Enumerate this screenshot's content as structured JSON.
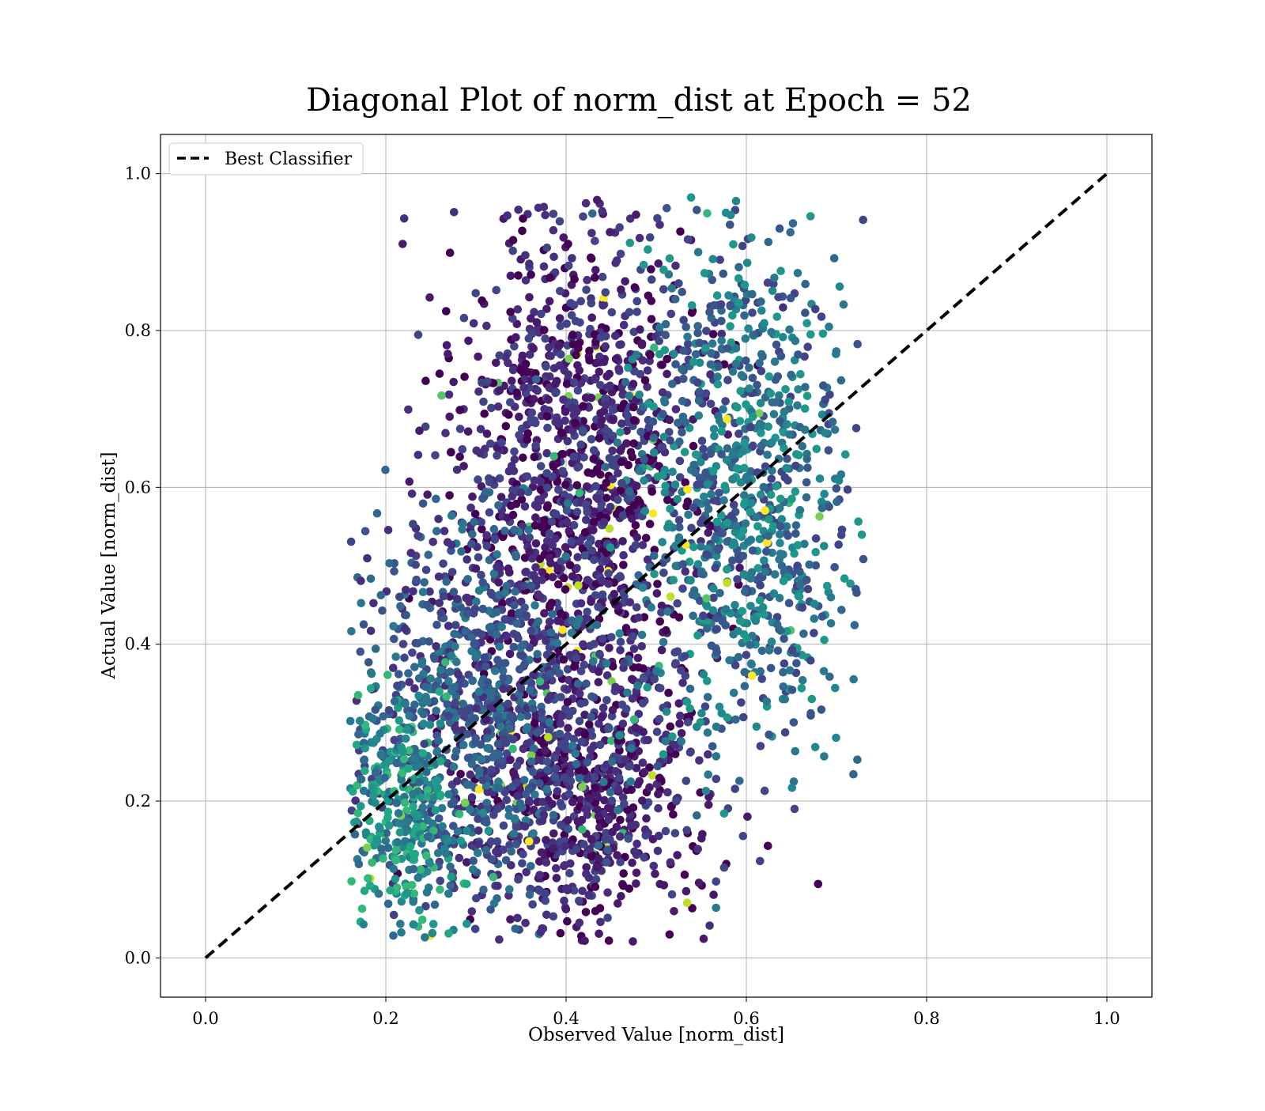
{
  "chart_data": {
    "type": "scatter",
    "title": "Diagonal Plot of norm_dist at Epoch = 52",
    "xlabel": "Observed Value [norm_dist]",
    "ylabel": "Actual Value [norm_dist]",
    "xlim": [
      -0.05,
      1.05
    ],
    "ylim": [
      -0.05,
      1.05
    ],
    "xticks": [
      "0.0",
      "0.2",
      "0.4",
      "0.6",
      "0.8",
      "1.0"
    ],
    "yticks": [
      "0.0",
      "0.2",
      "0.4",
      "0.6",
      "0.8",
      "1.0"
    ],
    "xtick_values": [
      0.0,
      0.2,
      0.4,
      0.6,
      0.8,
      1.0
    ],
    "ytick_values": [
      0.0,
      0.2,
      0.4,
      0.6,
      0.8,
      1.0
    ],
    "grid": true,
    "legend_placement": "top-left",
    "colormap": "viridis",
    "series": [
      {
        "name": "Best Classifier",
        "kind": "reference-line",
        "style": "dashed",
        "color": "#000000",
        "x": [
          0.0,
          1.0
        ],
        "y": [
          0.0,
          1.0
        ]
      }
    ],
    "scatter_cloud": {
      "description_of_distribution": "dense cloud of several thousand points",
      "x_range": [
        0.16,
        0.73
      ],
      "y_range": [
        0.02,
        0.97
      ],
      "clusters": [
        {
          "x_center": 0.41,
          "y_center": 0.62,
          "x_spread": 0.07,
          "y_spread": 0.17,
          "tone": "dark purple",
          "weight": 0.32
        },
        {
          "x_center": 0.42,
          "y_center": 0.2,
          "x_spread": 0.07,
          "y_spread": 0.1,
          "tone": "dark purple",
          "weight": 0.18
        },
        {
          "x_center": 0.3,
          "y_center": 0.32,
          "x_spread": 0.07,
          "y_spread": 0.13,
          "tone": "blue-teal",
          "weight": 0.2
        },
        {
          "x_center": 0.6,
          "y_center": 0.6,
          "x_spread": 0.06,
          "y_spread": 0.17,
          "tone": "teal",
          "weight": 0.22
        },
        {
          "x_center": 0.22,
          "y_center": 0.18,
          "x_spread": 0.04,
          "y_spread": 0.08,
          "tone": "teal-green",
          "weight": 0.08
        }
      ],
      "color_palette": [
        "#440154",
        "#481a6c",
        "#472f7d",
        "#414487",
        "#39568c",
        "#31688e",
        "#2a788e",
        "#23888e",
        "#1f988b",
        "#22a884",
        "#35b779",
        "#54c568",
        "#7ad151",
        "#bddf26",
        "#fde725"
      ]
    }
  }
}
